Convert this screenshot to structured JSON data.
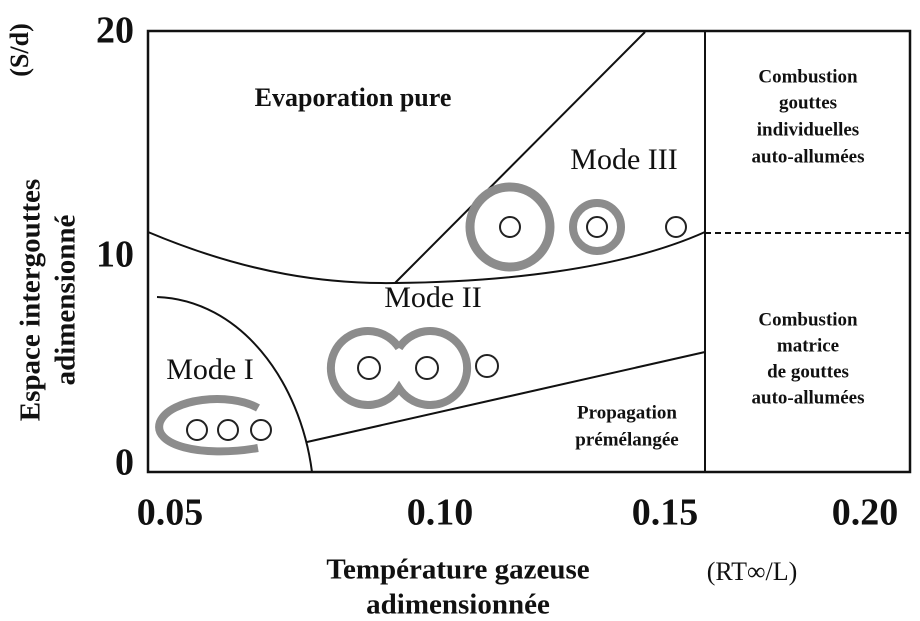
{
  "y_axis": {
    "unit": "(S/d)",
    "title_lines": [
      "Espace intergouttes",
      "adimensionné"
    ],
    "ticks": [
      "0",
      "10",
      "20"
    ]
  },
  "x_axis": {
    "unit": "(RT∞/L)",
    "title_lines": [
      "Température gazeuse",
      "adimensionnée"
    ],
    "ticks": [
      "0.05",
      "0.10",
      "0.15",
      "0.20"
    ]
  },
  "regions": {
    "evaporation": "Evaporation pure",
    "mode_1": "Mode I",
    "mode_2": "Mode II",
    "mode_3": "Mode III",
    "propagation": [
      "Propagation",
      "prémélangée"
    ],
    "individual": [
      "Combustion",
      "gouttes",
      "individuelles",
      "auto-allumées"
    ],
    "matrix": [
      "Combustion",
      "matrice",
      "de gouttes",
      "auto-allumées"
    ]
  }
}
